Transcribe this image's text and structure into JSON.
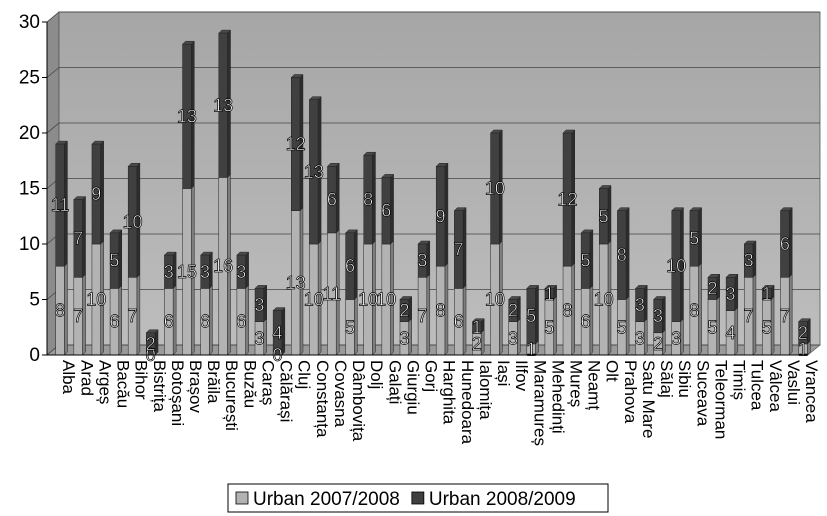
{
  "chart_data": {
    "type": "bar",
    "stacked": true,
    "title": "",
    "xlabel": "",
    "ylabel": "",
    "ylim": [
      0,
      30
    ],
    "yticks": [
      0,
      5,
      10,
      15,
      20,
      25,
      30
    ],
    "grid": true,
    "legend_position": "bottom",
    "categories": [
      "Alba",
      "Arad",
      "Argeș",
      "Bacău",
      "Bihor",
      "Bistrița",
      "Botoșani",
      "Brașov",
      "Brăila",
      "București",
      "Buzău",
      "Caraș",
      "Călărași",
      "Cluj",
      "Constanța",
      "Covasna",
      "Dâmbovița",
      "Dolj",
      "Galați",
      "Giurgiu",
      "Gorj",
      "Harghita",
      "Hunedoara",
      "Ialomița",
      "Iași",
      "Ilfov",
      "Maramureș",
      "Mehedinți",
      "Mureș",
      "Neamț",
      "Olt",
      "Prahova",
      "Satu Mare",
      "Sălaj",
      "Sibiu",
      "Suceava",
      "Teleorman",
      "Timiș",
      "Tulcea",
      "Vâlcea",
      "Vaslui",
      "Vrancea"
    ],
    "series": [
      {
        "name": "Urban 2007/2008",
        "color": "#b3b3b3",
        "values": [
          8,
          7,
          10,
          6,
          7,
          0,
          6,
          15,
          6,
          16,
          6,
          3,
          0,
          13,
          10,
          11,
          5,
          10,
          10,
          3,
          7,
          8,
          6,
          2,
          10,
          3,
          1,
          5,
          8,
          6,
          10,
          5,
          3,
          2,
          3,
          8,
          5,
          4,
          7,
          5,
          7,
          1
        ]
      },
      {
        "name": "Urban 2008/2009",
        "color": "#404040",
        "values": [
          11,
          7,
          9,
          5,
          10,
          2,
          3,
          13,
          3,
          13,
          3,
          3,
          4,
          12,
          13,
          6,
          6,
          8,
          6,
          2,
          3,
          9,
          7,
          1,
          10,
          2,
          5,
          1,
          12,
          5,
          5,
          8,
          3,
          3,
          10,
          5,
          2,
          3,
          3,
          1,
          6,
          2
        ]
      }
    ]
  }
}
